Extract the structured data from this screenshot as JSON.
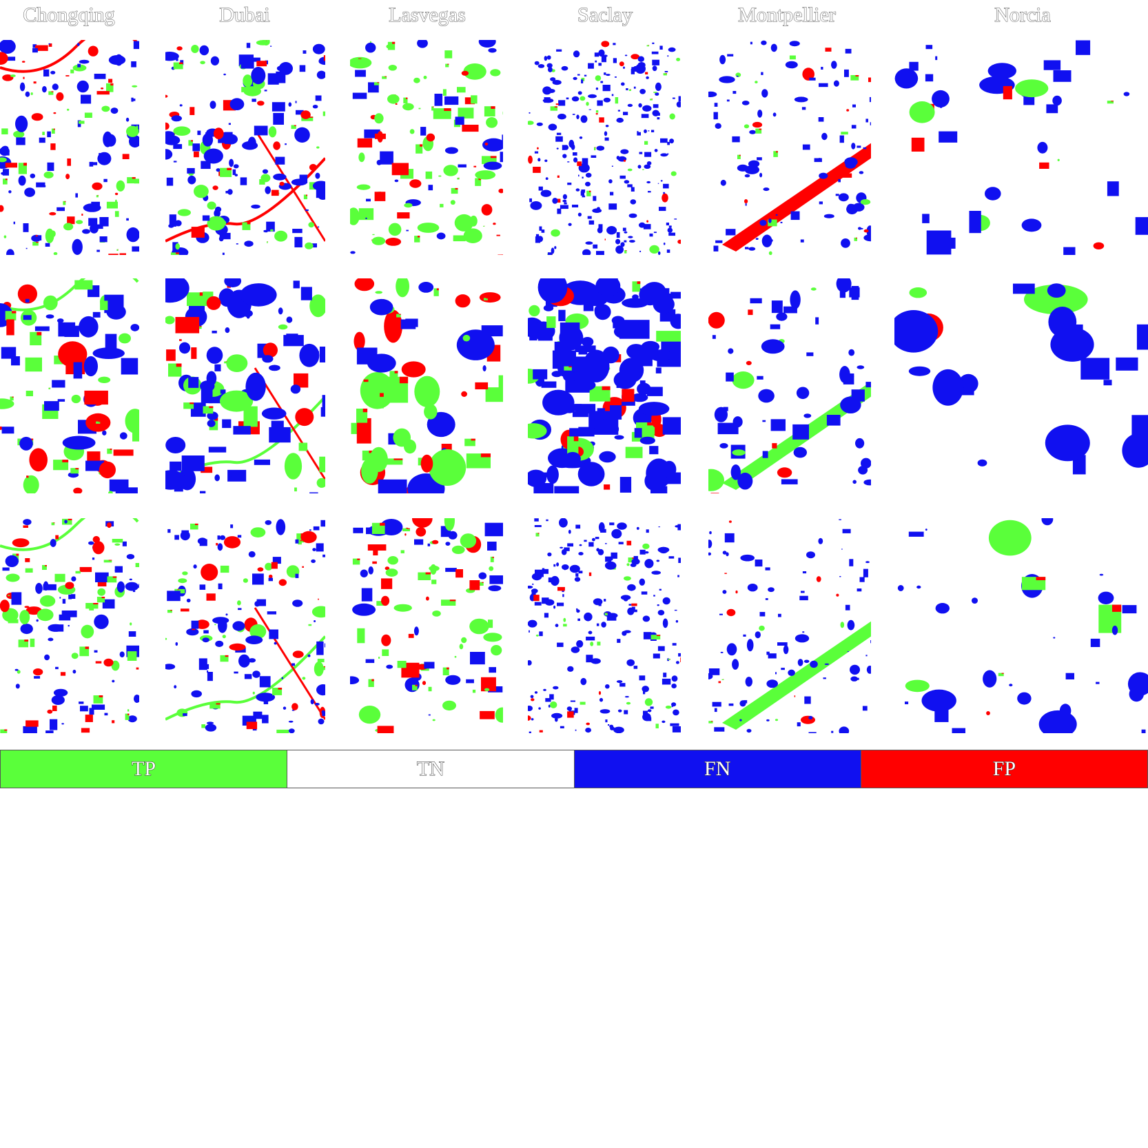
{
  "columns": [
    {
      "title": "Chongqing"
    },
    {
      "title": "Dubai"
    },
    {
      "title": "Lasvegas"
    },
    {
      "title": "Saclay"
    },
    {
      "title": "Montpellier"
    },
    {
      "title": "Norcia"
    }
  ],
  "rows": 3,
  "legend": [
    {
      "label": "TP",
      "color": "#5aff3a"
    },
    {
      "label": "TN",
      "color": "#ffffff"
    },
    {
      "label": "FN",
      "color": "#1010f0"
    },
    {
      "label": "FP",
      "color": "#ff0000"
    }
  ],
  "colors": {
    "tp": "#5aff3a",
    "fn": "#1010f0",
    "fp": "#ff0000",
    "tn": "#ffffff"
  }
}
